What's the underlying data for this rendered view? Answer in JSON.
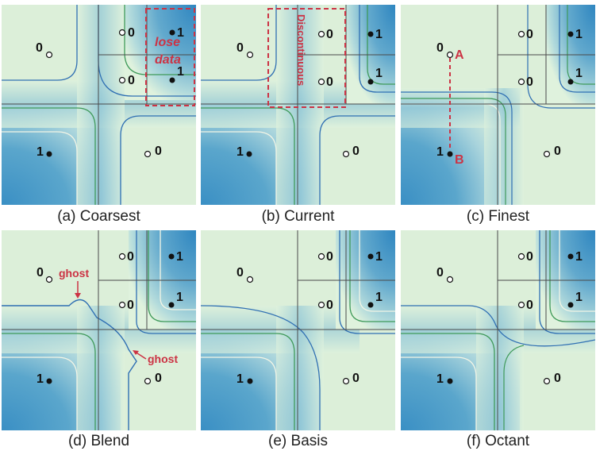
{
  "colors": {
    "dark_blue": "#3a8fc4",
    "mid_blue": "#8cc3d8",
    "light_green": "#d8f0d8",
    "contour_blue": "#2f6fb3",
    "contour_green": "#3f9a5a",
    "contour_white": "#f4f6e6",
    "grid_line": "#4a4a4a",
    "annotation_red": "#cc3344"
  },
  "panels": [
    {
      "id": "a",
      "caption": "(a) Coarsest",
      "labels": {
        "tl": "0",
        "br": "0",
        "bl": "1",
        "tr_a": "0",
        "tr_b": "1",
        "tr_c": "0",
        "tr_d": "1"
      },
      "annotation": {
        "lose": "lose",
        "data": "data"
      }
    },
    {
      "id": "b",
      "caption": "(b) Current",
      "labels": {
        "tl": "0",
        "br": "0",
        "bl": "1",
        "tr_a": "0",
        "tr_b": "1",
        "tr_c": "0",
        "tr_d": "1"
      },
      "annotation": {
        "text": "Discontinuous"
      }
    },
    {
      "id": "c",
      "caption": "(c) Finest",
      "labels": {
        "tl": "0",
        "br": "0",
        "bl": "1",
        "tr_a": "0",
        "tr_b": "1",
        "tr_c": "0",
        "tr_d": "1"
      },
      "annotation": {
        "a": "A",
        "b": "B"
      }
    },
    {
      "id": "d",
      "caption": "(d) Blend",
      "labels": {
        "tl": "0",
        "br": "0",
        "bl": "1",
        "tr_a": "0",
        "tr_b": "1",
        "tr_c": "0",
        "tr_d": "1"
      },
      "annotation": {
        "ghost1": "ghost",
        "ghost2": "ghost"
      }
    },
    {
      "id": "e",
      "caption": "(e) Basis",
      "labels": {
        "tl": "0",
        "br": "0",
        "bl": "1",
        "tr_a": "0",
        "tr_b": "1",
        "tr_c": "0",
        "tr_d": "1"
      }
    },
    {
      "id": "f",
      "caption": "(f) Octant",
      "labels": {
        "tl": "0",
        "br": "0",
        "bl": "1",
        "tr_a": "0",
        "tr_b": "1",
        "tr_c": "0",
        "tr_d": "1"
      }
    }
  ]
}
